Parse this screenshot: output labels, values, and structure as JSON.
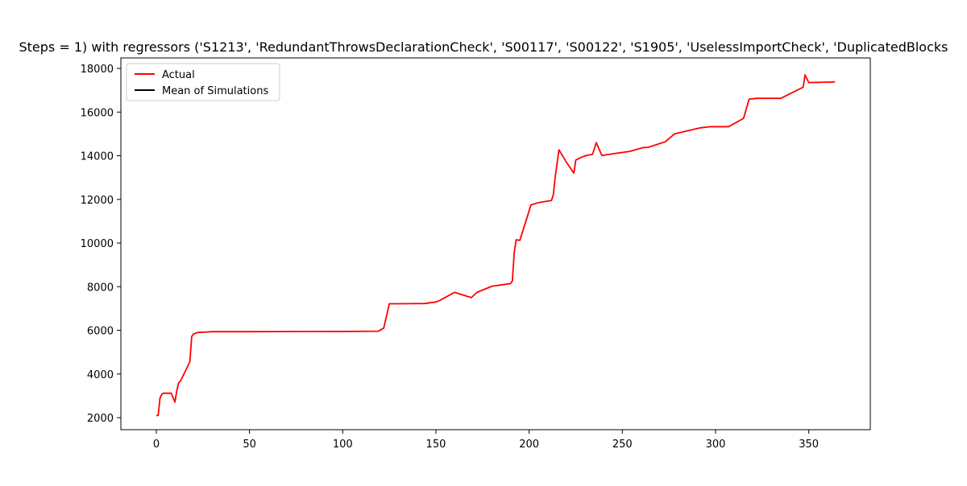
{
  "chart_data": {
    "type": "line",
    "title": "Steps = 1) with regressors ('S1213', 'RedundantThrowsDeclarationCheck', 'S00117', 'S00122', 'S1905', 'UselessImportCheck', 'DuplicatedBlocks",
    "xlabel": "",
    "ylabel": "",
    "xlim": [
      -19,
      383
    ],
    "ylim": [
      1450,
      18480
    ],
    "xticks": [
      0,
      50,
      100,
      150,
      200,
      250,
      300,
      350
    ],
    "yticks": [
      2000,
      4000,
      6000,
      8000,
      10000,
      12000,
      14000,
      16000,
      18000
    ],
    "grid": false,
    "legend_position": "upper-left",
    "legend": [
      {
        "label": "Actual",
        "color": "#ff0000"
      },
      {
        "label": "Mean of Simulations",
        "color": "#000000"
      }
    ],
    "series": [
      {
        "name": "Actual",
        "color": "#ff0000",
        "x": [
          0,
          1,
          2,
          3,
          4,
          5,
          6,
          7,
          8,
          10,
          11,
          12,
          13,
          18,
          19,
          20,
          22,
          30,
          50,
          100,
          119,
          122,
          125,
          130,
          144,
          150,
          152,
          160,
          169,
          172,
          180,
          188,
          190,
          191,
          192,
          193,
          195,
          201,
          205,
          212,
          213,
          214,
          216,
          220,
          224,
          225,
          228,
          231,
          234,
          236,
          239,
          245,
          254,
          261,
          264,
          273,
          278,
          292,
          297,
          307,
          315,
          318,
          322,
          335,
          347,
          348,
          350,
          364
        ],
        "y": [
          2100,
          2100,
          2900,
          3080,
          3120,
          3120,
          3120,
          3120,
          3120,
          2710,
          3240,
          3600,
          3680,
          4560,
          5720,
          5830,
          5900,
          5940,
          5940,
          5950,
          5960,
          6100,
          7220,
          7220,
          7230,
          7300,
          7370,
          7740,
          7500,
          7740,
          8020,
          8120,
          8140,
          8270,
          9560,
          10150,
          10120,
          11750,
          11850,
          11950,
          12220,
          13040,
          14270,
          13700,
          13200,
          13800,
          13930,
          14020,
          14060,
          14600,
          14010,
          14090,
          14200,
          14370,
          14390,
          14640,
          15000,
          15280,
          15330,
          15330,
          15710,
          16590,
          16630,
          16630,
          17140,
          17700,
          17350,
          17380
        ]
      },
      {
        "name": "Mean of Simulations",
        "color": "#000000",
        "x": [],
        "y": []
      }
    ]
  }
}
